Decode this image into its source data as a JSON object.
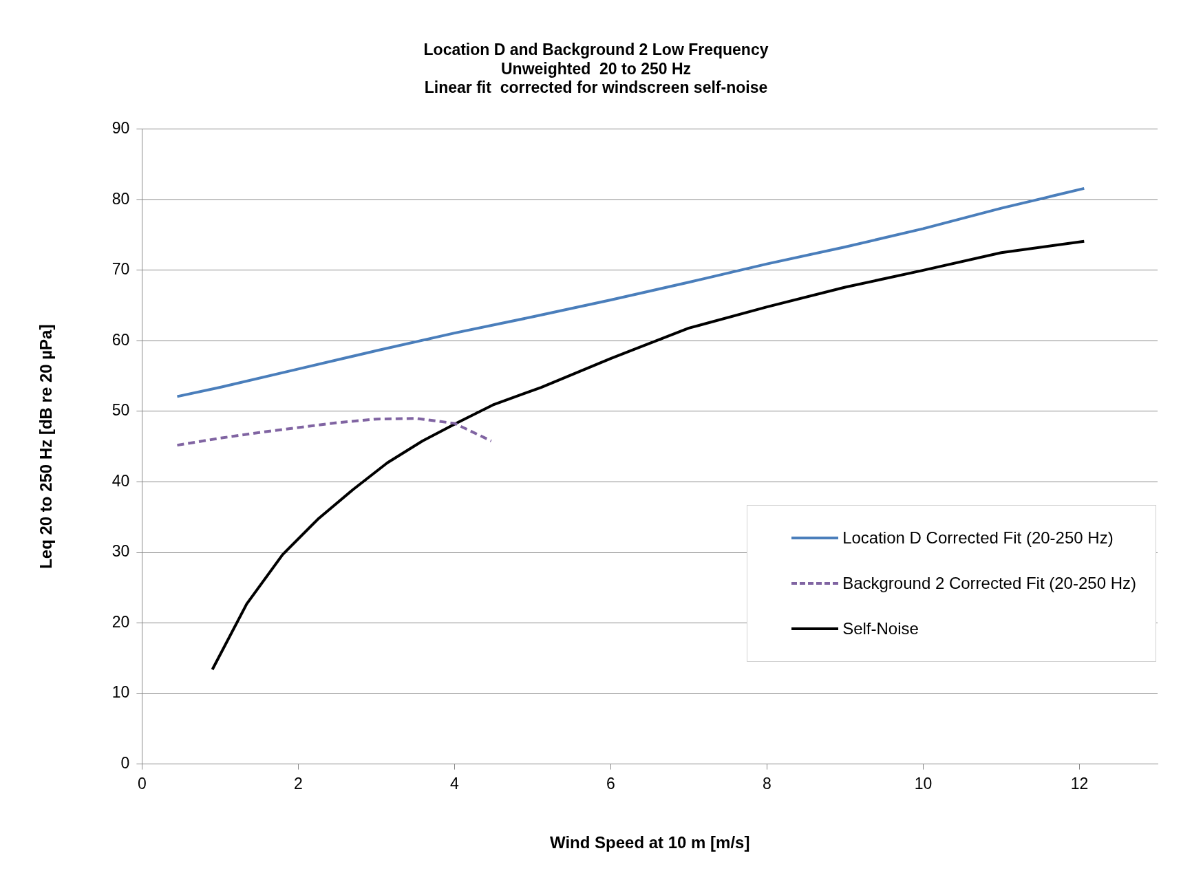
{
  "chart_data": {
    "type": "line",
    "title": "Location D and Background 2 Low Frequency\nUnweighted  20 to 250 Hz\nLinear fit  corrected for windscreen self-noise",
    "xlabel": "Wind Speed at 10 m [m/s]",
    "ylabel": "Leq 20 to 250 Hz [dB re 20 µPa]",
    "xlim": [
      0,
      13
    ],
    "xticks": [
      0,
      2,
      4,
      6,
      8,
      10,
      12
    ],
    "ylim": [
      0,
      90
    ],
    "yticks": [
      0,
      10,
      20,
      30,
      40,
      50,
      60,
      70,
      80,
      90
    ],
    "grid": "y",
    "legend": "bottom right",
    "marker": "none",
    "series": [
      {
        "name": "Location D Corrected Fit (20-250 Hz)",
        "color": "#4a7ebb",
        "line_style": "solid",
        "x": [
          0.45,
          1,
          2,
          3,
          4,
          5,
          6,
          7,
          8,
          9,
          10,
          11,
          12.06
        ],
        "values": [
          52.1,
          53.4,
          56.0,
          58.6,
          61.1,
          63.4,
          65.8,
          68.3,
          70.9,
          73.3,
          75.9,
          78.8,
          81.6
        ]
      },
      {
        "name": "Background 2 Corrected Fit (20-250 Hz)",
        "color": "#8064a2",
        "line_style": "dashed",
        "x": [
          0.45,
          1,
          1.5,
          2,
          2.5,
          3,
          3.5,
          4,
          4.47
        ],
        "values": [
          45.2,
          46.2,
          47.0,
          47.7,
          48.4,
          48.9,
          49.0,
          48.3,
          45.8
        ]
      },
      {
        "name": "Self-Noise",
        "color": "#000000",
        "line_style": "solid",
        "x": [
          0.9,
          1.34,
          1.8,
          2.25,
          2.7,
          3.14,
          3.59,
          4.04,
          4.49,
          5.11,
          6,
          7,
          8,
          9,
          10,
          11,
          12.06
        ],
        "values": [
          13.4,
          22.7,
          29.7,
          34.7,
          38.9,
          42.7,
          45.8,
          48.4,
          50.9,
          53.4,
          57.5,
          61.8,
          64.8,
          67.6,
          70.0,
          72.5,
          74.1
        ]
      }
    ]
  }
}
